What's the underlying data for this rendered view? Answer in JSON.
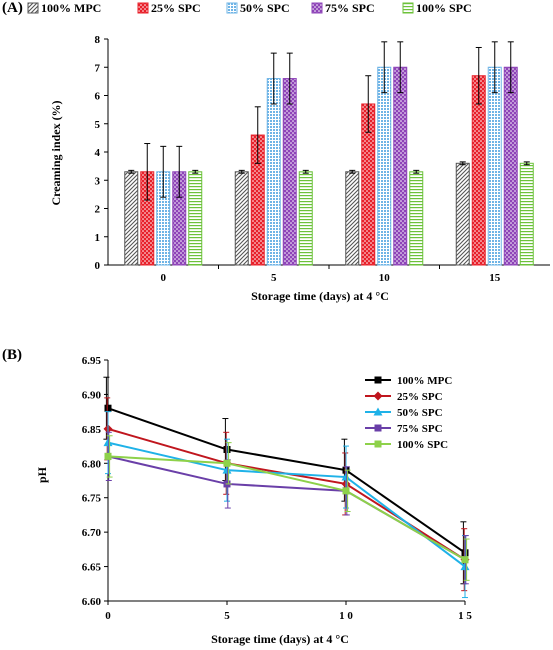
{
  "panel_a_label": "(A)",
  "panel_b_label": "(B)",
  "chart_data": [
    {
      "type": "bar",
      "panel": "(A)",
      "xlabel": "Storage time (days) at 4 °C",
      "ylabel": "Creaming index (%)",
      "ylim": [
        0,
        8
      ],
      "yticks": [
        0,
        1,
        2,
        3,
        4,
        5,
        6,
        7,
        8
      ],
      "categories": [
        "0",
        "5",
        "10",
        "15"
      ],
      "legend_position": "top",
      "series": [
        {
          "name": "100% MPC",
          "color": "#555555",
          "pattern": "diagonal-hatch",
          "values": [
            3.3,
            3.3,
            3.3,
            3.6
          ],
          "errors": [
            0.05,
            0.05,
            0.05,
            0.05
          ]
        },
        {
          "name": "25% SPC",
          "color": "#e8202a",
          "pattern": "dots",
          "values": [
            3.3,
            4.6,
            5.7,
            6.7
          ],
          "errors": [
            1.0,
            1.0,
            1.0,
            1.0
          ]
        },
        {
          "name": "50% SPC",
          "color": "#6fb4e6",
          "pattern": "grid",
          "values": [
            3.3,
            6.6,
            7.0,
            7.0
          ],
          "errors": [
            0.9,
            0.9,
            0.9,
            0.9
          ]
        },
        {
          "name": "75% SPC",
          "color": "#8e44b8",
          "pattern": "dots",
          "values": [
            3.3,
            6.6,
            7.0,
            7.0
          ],
          "errors": [
            0.9,
            0.9,
            0.9,
            0.9
          ]
        },
        {
          "name": "100% SPC",
          "color": "#6cc23a",
          "pattern": "horizontal-lines",
          "values": [
            3.3,
            3.3,
            3.3,
            3.6
          ],
          "errors": [
            0.05,
            0.05,
            0.05,
            0.05
          ]
        }
      ]
    },
    {
      "type": "line",
      "panel": "(B)",
      "xlabel": "Storage time (days) at 4 °C",
      "ylabel": "pH",
      "x": [
        0,
        5,
        10,
        15
      ],
      "xticks": [
        "0",
        "5",
        "1 0",
        "1 5"
      ],
      "xlim": [
        0,
        15
      ],
      "ylim": [
        6.6,
        6.95
      ],
      "yticks": [
        "6.60",
        "6.65",
        "6.70",
        "6.75",
        "6.80",
        "6.85",
        "6.90",
        "6.95"
      ],
      "legend_position": "top-right",
      "series": [
        {
          "name": "100% MPC",
          "color": "#000000",
          "marker": "square",
          "values": [
            6.88,
            6.82,
            6.79,
            6.67
          ],
          "errors": [
            0.045,
            0.045,
            0.045,
            0.045
          ]
        },
        {
          "name": "25% SPC",
          "color": "#c0161e",
          "marker": "diamond",
          "values": [
            6.85,
            6.8,
            6.77,
            6.66
          ],
          "errors": [
            0.045,
            0.045,
            0.045,
            0.045
          ]
        },
        {
          "name": "50% SPC",
          "color": "#1fb2e8",
          "marker": "triangle",
          "values": [
            6.83,
            6.79,
            6.78,
            6.65
          ],
          "errors": [
            0.045,
            0.045,
            0.045,
            0.045
          ]
        },
        {
          "name": "75% SPC",
          "color": "#6a3fa8",
          "marker": "square",
          "values": [
            6.81,
            6.77,
            6.76,
            6.66
          ],
          "errors": [
            0.035,
            0.035,
            0.035,
            0.035
          ]
        },
        {
          "name": "100% SPC",
          "color": "#8ed14a",
          "marker": "square",
          "values": [
            6.81,
            6.8,
            6.76,
            6.66
          ],
          "errors": [
            0.03,
            0.03,
            0.03,
            0.03
          ]
        }
      ]
    }
  ]
}
